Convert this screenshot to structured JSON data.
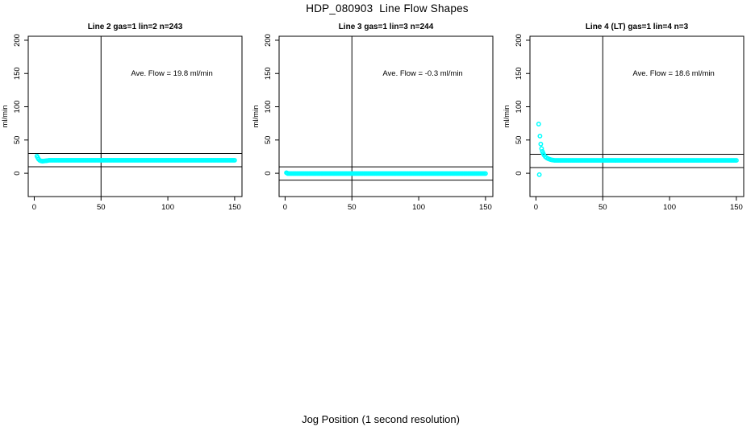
{
  "page": {
    "title": "HDP_080903  Line Flow Shapes",
    "xlabel": "Jog Position (1 second resolution)"
  },
  "colors": {
    "marker": "#00FFFF",
    "axis": "#000000",
    "background": "#FFFFFF"
  },
  "chart_data": [
    {
      "type": "scatter",
      "title": "Line 2 gas=1 lin=2 n=243",
      "annotation": "Ave. Flow =  19.8  ml/min",
      "ave_flow_ml_min": 19.8,
      "n": 243,
      "ylabel": "ml/min",
      "xlim": [
        -4.5,
        155.5
      ],
      "ylim": [
        -35,
        206
      ],
      "x_ticks": [
        0,
        50,
        100,
        150
      ],
      "y_ticks": [
        0,
        50,
        100,
        150,
        200
      ],
      "vline_x": 50,
      "ref_lines": [
        29.8,
        9.8
      ],
      "grid": false,
      "legend": false,
      "points": [
        [
          2,
          25.8
        ],
        [
          2.6,
          23.5
        ],
        [
          3.2,
          21.3
        ],
        [
          4,
          19.6
        ],
        [
          5,
          18.6
        ],
        [
          6,
          18.3
        ],
        [
          7,
          18.4
        ],
        [
          8,
          18.6
        ],
        [
          9,
          18.9
        ],
        [
          10,
          19.1
        ]
      ],
      "flat_run": {
        "x_from": 11,
        "x_to": 150,
        "x_step": 1,
        "y": 19.6
      }
    },
    {
      "type": "scatter",
      "title": "Line 3 gas=1 lin=3 n=244",
      "annotation": "Ave. Flow =  -0.3  ml/min",
      "ave_flow_ml_min": -0.3,
      "n": 244,
      "ylabel": "ml/min",
      "xlim": [
        -4.5,
        155.5
      ],
      "ylim": [
        -35,
        206
      ],
      "x_ticks": [
        0,
        50,
        100,
        150
      ],
      "y_ticks": [
        0,
        50,
        100,
        150,
        200
      ],
      "vline_x": 50,
      "ref_lines": [
        9.7,
        -10.3
      ],
      "grid": false,
      "legend": false,
      "points": [
        [
          1,
          0.9
        ],
        [
          1.6,
          0.2
        ]
      ],
      "flat_run": {
        "x_from": 2,
        "x_to": 150,
        "x_step": 1,
        "y": -0.4
      }
    },
    {
      "type": "scatter",
      "title": "Line 4 (LT) gas=1 lin=4 n=3",
      "annotation": "Ave. Flow =  18.6  ml/min",
      "ave_flow_ml_min": 18.6,
      "n": 3,
      "ylabel": "ml/min",
      "xlim": [
        -4.5,
        155.5
      ],
      "ylim": [
        -35,
        206
      ],
      "x_ticks": [
        0,
        50,
        100,
        150
      ],
      "y_ticks": [
        0,
        50,
        100,
        150,
        200
      ],
      "vline_x": 50,
      "ref_lines": [
        28.6,
        8.6
      ],
      "grid": false,
      "legend": false,
      "points": [
        [
          2,
          74
        ],
        [
          2.5,
          -2
        ],
        [
          3,
          56
        ],
        [
          3.6,
          44
        ],
        [
          4.2,
          37
        ],
        [
          4.8,
          33
        ],
        [
          5.4,
          30
        ],
        [
          6,
          27.5
        ],
        [
          7,
          25
        ],
        [
          8,
          23.2
        ],
        [
          9,
          22
        ],
        [
          10,
          21.2
        ],
        [
          11,
          20.5
        ],
        [
          12,
          20
        ],
        [
          13,
          19.7
        ]
      ],
      "flat_run": {
        "x_from": 14,
        "x_to": 150,
        "x_step": 1,
        "y": 19.4
      }
    }
  ]
}
